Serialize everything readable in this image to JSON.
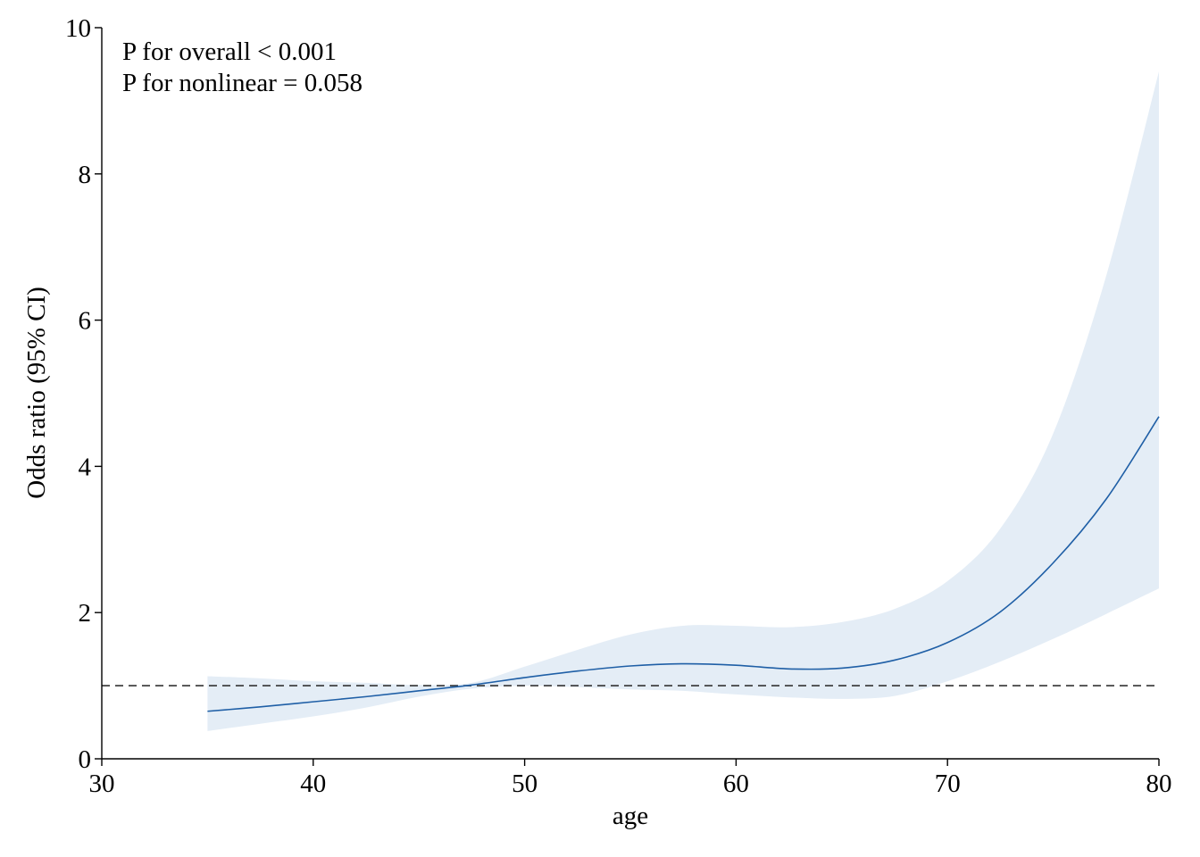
{
  "chart_data": {
    "type": "line",
    "title": "",
    "xlabel": "age",
    "ylabel": "Odds ratio (95% CI)",
    "xlim": [
      30,
      80
    ],
    "ylim": [
      0,
      10
    ],
    "xticks": [
      30,
      40,
      50,
      60,
      70,
      80
    ],
    "yticks": [
      0,
      2,
      4,
      6,
      8,
      10
    ],
    "grid": false,
    "reference_line": {
      "y": 1,
      "style": "dashed",
      "color": "#333333"
    },
    "annotations": [
      "P for overall < 0.001",
      "P for nonlinear = 0.058"
    ],
    "colors": {
      "line": "#1f5fa6",
      "band": "#e4edf6"
    },
    "series": [
      {
        "x": [
          35,
          37.5,
          40,
          42.5,
          45,
          47.5,
          50,
          52.5,
          55,
          57.5,
          60,
          62.5,
          65,
          67.5,
          70,
          72.5,
          75,
          77.5,
          80
        ],
        "y": [
          0.65,
          0.71,
          0.78,
          0.85,
          0.93,
          1.01,
          1.11,
          1.2,
          1.27,
          1.3,
          1.28,
          1.23,
          1.24,
          1.35,
          1.59,
          2.01,
          2.68,
          3.55,
          4.68
        ],
        "lower": [
          0.38,
          0.48,
          0.58,
          0.7,
          0.85,
          0.96,
          1.0,
          0.98,
          0.95,
          0.93,
          0.88,
          0.84,
          0.82,
          0.86,
          1.06,
          1.33,
          1.64,
          1.98,
          2.33
        ],
        "upper": [
          1.13,
          1.1,
          1.06,
          1.04,
          1.01,
          1.04,
          1.26,
          1.49,
          1.7,
          1.82,
          1.82,
          1.8,
          1.87,
          2.05,
          2.43,
          3.15,
          4.45,
          6.6,
          9.4
        ]
      }
    ]
  }
}
